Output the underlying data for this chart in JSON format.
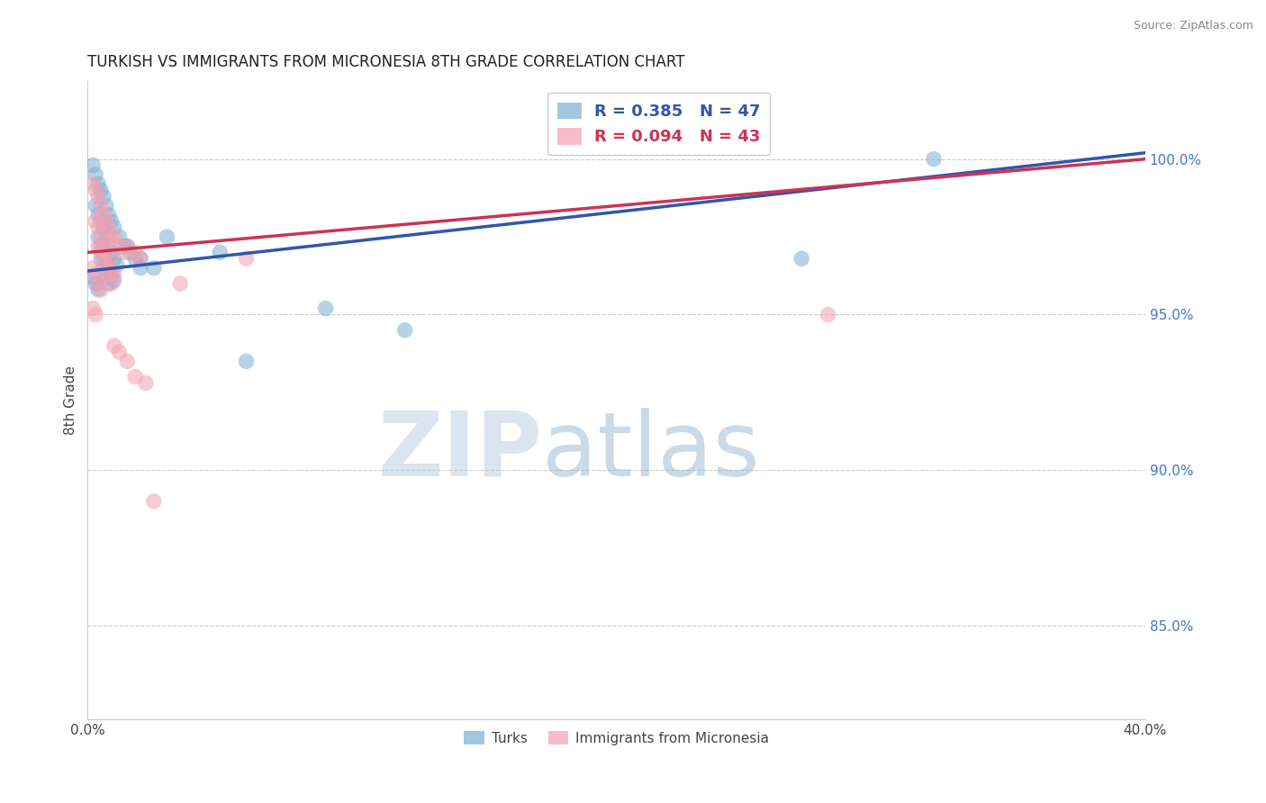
{
  "title": "TURKISH VS IMMIGRANTS FROM MICRONESIA 8TH GRADE CORRELATION CHART",
  "source": "Source: ZipAtlas.com",
  "ylabel": "8th Grade",
  "xlim": [
    0.0,
    0.4
  ],
  "ylim": [
    0.82,
    1.025
  ],
  "ytick_right": [
    0.85,
    0.9,
    0.95,
    1.0
  ],
  "ytick_right_labels": [
    "85.0%",
    "90.0%",
    "95.0%",
    "100.0%"
  ],
  "r_blue": 0.385,
  "n_blue": 47,
  "r_pink": 0.094,
  "n_pink": 43,
  "blue_color": "#7BAFD4",
  "pink_color": "#F4A0B0",
  "trend_blue": "#3355AA",
  "trend_pink": "#CC3355",
  "legend_label_blue": "Turks",
  "legend_label_pink": "Immigrants from Micronesia",
  "watermark_zip": "ZIP",
  "watermark_atlas": "atlas",
  "background_color": "#FFFFFF",
  "blue_dots_x": [
    0.002,
    0.003,
    0.004,
    0.005,
    0.006,
    0.007,
    0.008,
    0.009,
    0.01,
    0.003,
    0.004,
    0.005,
    0.006,
    0.007,
    0.008,
    0.009,
    0.01,
    0.011,
    0.004,
    0.005,
    0.006,
    0.007,
    0.008,
    0.009,
    0.01,
    0.005,
    0.006,
    0.007,
    0.008,
    0.002,
    0.003,
    0.004,
    0.012,
    0.014,
    0.016,
    0.018,
    0.02,
    0.015,
    0.02,
    0.025,
    0.03,
    0.05,
    0.32,
    0.27,
    0.09,
    0.12,
    0.06
  ],
  "blue_dots_y": [
    0.998,
    0.995,
    0.992,
    0.99,
    0.988,
    0.985,
    0.982,
    0.98,
    0.978,
    0.985,
    0.982,
    0.98,
    0.978,
    0.975,
    0.972,
    0.97,
    0.968,
    0.966,
    0.975,
    0.972,
    0.97,
    0.968,
    0.965,
    0.963,
    0.961,
    0.968,
    0.965,
    0.962,
    0.96,
    0.962,
    0.96,
    0.958,
    0.975,
    0.972,
    0.97,
    0.968,
    0.965,
    0.972,
    0.968,
    0.965,
    0.975,
    0.97,
    1.0,
    0.968,
    0.952,
    0.945,
    0.935
  ],
  "pink_dots_x": [
    0.002,
    0.003,
    0.004,
    0.005,
    0.006,
    0.007,
    0.008,
    0.009,
    0.003,
    0.004,
    0.005,
    0.006,
    0.007,
    0.008,
    0.009,
    0.01,
    0.004,
    0.005,
    0.006,
    0.007,
    0.008,
    0.009,
    0.002,
    0.003,
    0.004,
    0.005,
    0.01,
    0.012,
    0.014,
    0.015,
    0.018,
    0.02,
    0.002,
    0.003,
    0.28,
    0.06,
    0.035,
    0.01,
    0.012,
    0.015,
    0.018,
    0.022,
    0.025
  ],
  "pink_dots_y": [
    0.992,
    0.99,
    0.988,
    0.985,
    0.982,
    0.98,
    0.978,
    0.975,
    0.98,
    0.978,
    0.975,
    0.972,
    0.97,
    0.968,
    0.965,
    0.963,
    0.972,
    0.97,
    0.968,
    0.965,
    0.963,
    0.96,
    0.965,
    0.963,
    0.96,
    0.958,
    0.975,
    0.972,
    0.97,
    0.972,
    0.97,
    0.968,
    0.952,
    0.95,
    0.95,
    0.968,
    0.96,
    0.94,
    0.938,
    0.935,
    0.93,
    0.928,
    0.89
  ]
}
